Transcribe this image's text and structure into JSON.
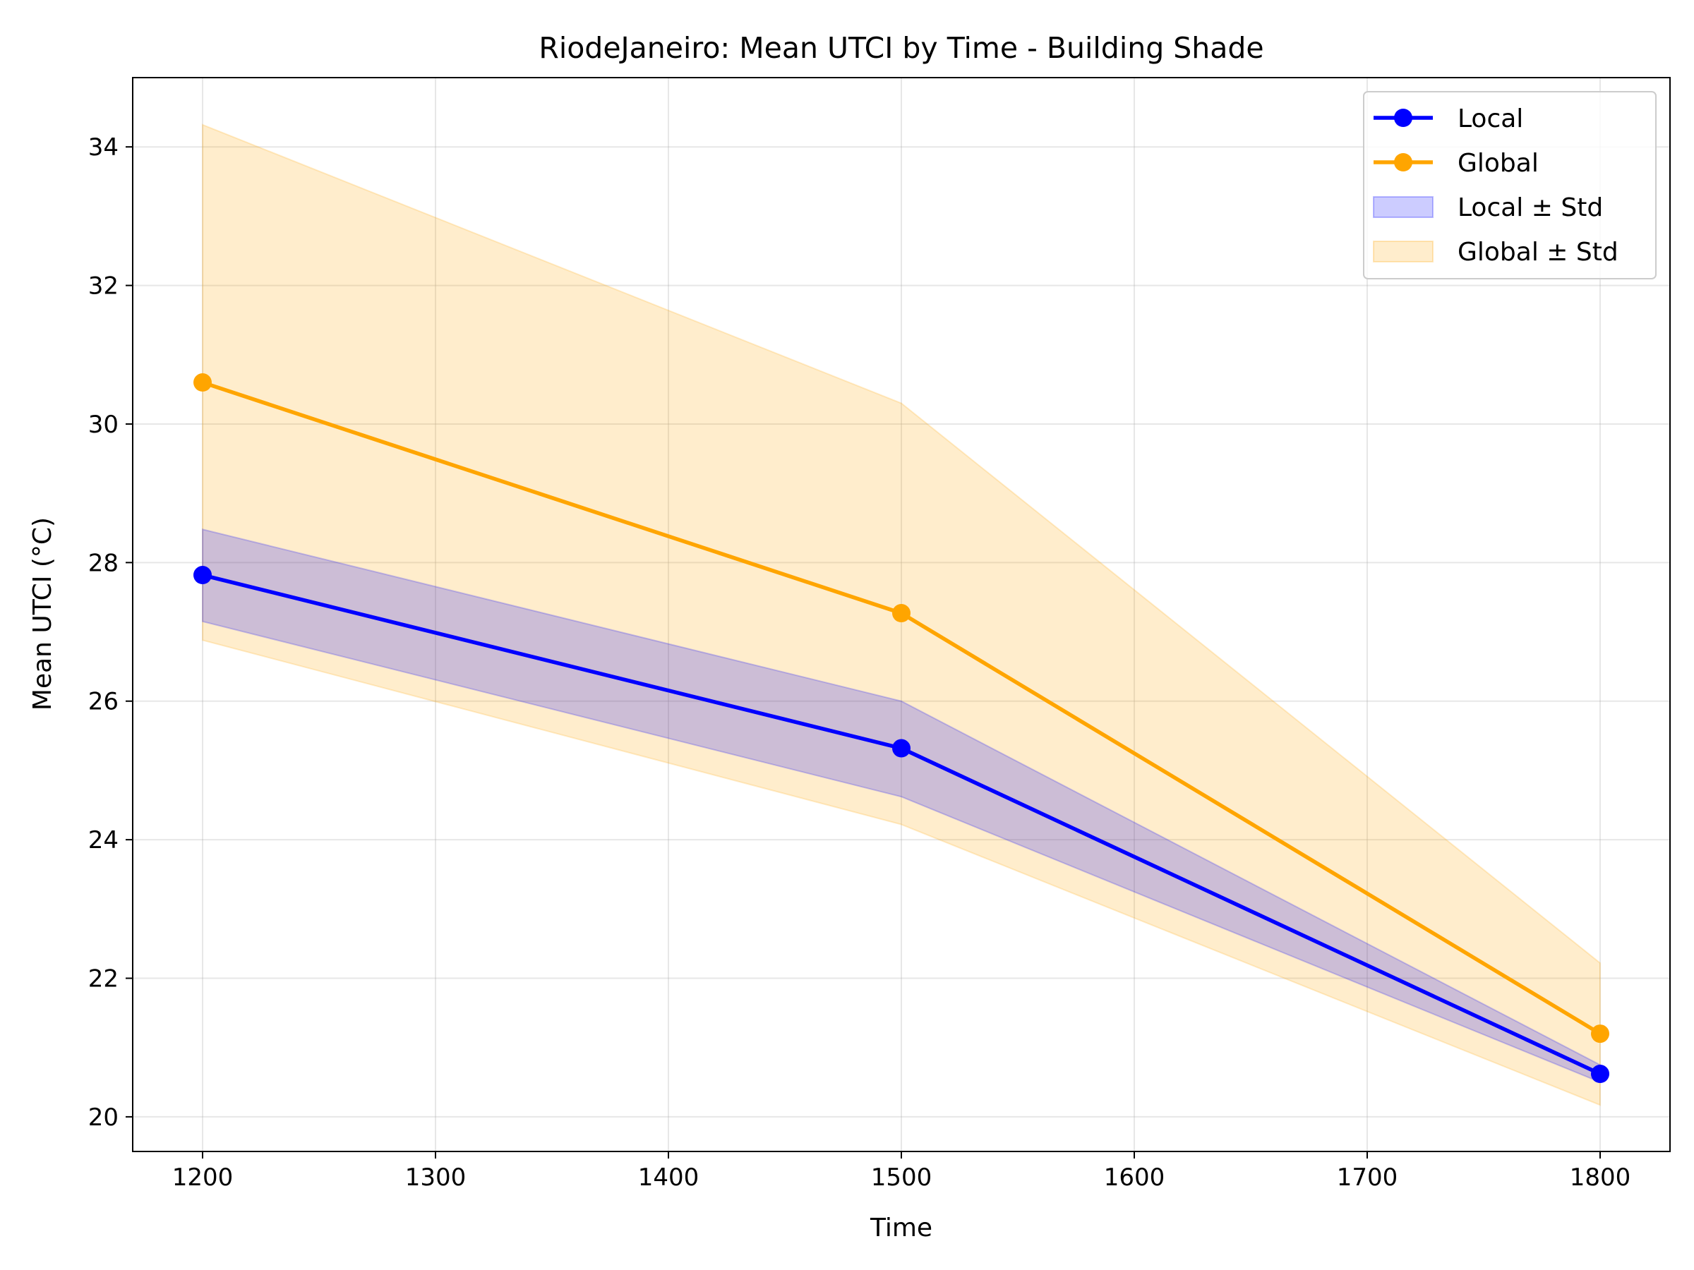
{
  "chart_data": {
    "type": "line",
    "title": "RiodeJaneiro: Mean UTCI by Time - Building Shade",
    "xlabel": "Time",
    "ylabel": "Mean UTCI (°C)",
    "xlim": [
      1170,
      1830
    ],
    "ylim": [
      19.5,
      35.0
    ],
    "xticks": [
      1200,
      1300,
      1400,
      1500,
      1600,
      1700,
      1800
    ],
    "yticks": [
      20,
      22,
      24,
      26,
      28,
      30,
      32,
      34
    ],
    "grid": true,
    "legend_position": "top-right",
    "x": [
      1200,
      1500,
      1800
    ],
    "series": [
      {
        "name": "Local",
        "color": "#0000ff",
        "values": [
          27.82,
          25.32,
          20.62
        ],
        "std_lower": [
          27.15,
          24.62,
          20.5
        ],
        "std_upper": [
          28.48,
          26.0,
          20.75
        ]
      },
      {
        "name": "Global",
        "color": "#ffa500",
        "values": [
          30.6,
          27.27,
          21.2
        ],
        "std_lower": [
          26.88,
          24.22,
          20.17
        ],
        "std_upper": [
          34.32,
          30.3,
          22.22
        ]
      }
    ],
    "legend": [
      {
        "label": "Local",
        "kind": "line",
        "color": "#0000ff"
      },
      {
        "label": "Global",
        "kind": "line",
        "color": "#ffa500"
      },
      {
        "label": "Local ± Std",
        "kind": "band",
        "color": "#0000ff"
      },
      {
        "label": "Global ± Std",
        "kind": "band",
        "color": "#ffa500"
      }
    ]
  }
}
